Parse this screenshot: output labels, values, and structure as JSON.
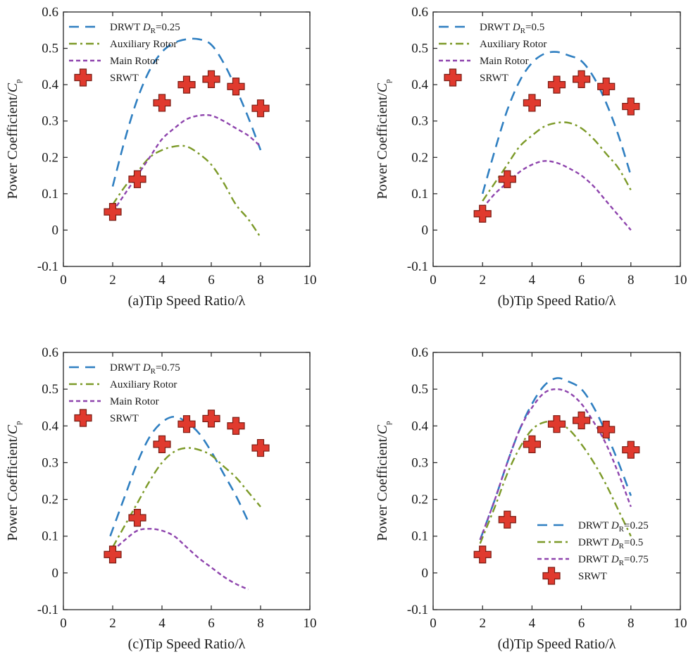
{
  "chart_data": [
    {
      "type": "line",
      "xlabel": "(a)Tip Speed Ratio/λ",
      "ylabel": {
        "prefix": "Power Coefficient/",
        "symbol": "C",
        "sub": "p"
      },
      "xlim": [
        0,
        10
      ],
      "ylim": [
        -0.1,
        0.6
      ],
      "xticks": [
        "0",
        "2",
        "4",
        "6",
        "8",
        "10"
      ],
      "yticks": [
        "-0.1",
        "0",
        "0.1",
        "0.2",
        "0.3",
        "0.4",
        "0.5",
        "0.6"
      ],
      "grid": false,
      "legend_position": "top-left",
      "series": [
        {
          "name": "DRWT D_R=0.25",
          "legend": {
            "main": "DRWT ",
            "ital": "D",
            "sub": "R",
            "tail": "=0.25"
          },
          "style": "dashed",
          "color": "#2f7fc1",
          "x": [
            2,
            2.5,
            3,
            3.5,
            4,
            4.5,
            5,
            5.5,
            6,
            6.5,
            7,
            7.5,
            8
          ],
          "y": [
            0.12,
            0.25,
            0.36,
            0.44,
            0.49,
            0.515,
            0.525,
            0.525,
            0.51,
            0.46,
            0.39,
            0.31,
            0.22
          ]
        },
        {
          "name": "Auxiliary Rotor",
          "legend": {
            "main": "Auxiliary Rotor"
          },
          "style": "dashdot",
          "color": "#7c9a28",
          "x": [
            2,
            2.5,
            3,
            3.5,
            4,
            4.5,
            5,
            5.5,
            6,
            6.5,
            7,
            7.5,
            8
          ],
          "y": [
            0.07,
            0.12,
            0.16,
            0.2,
            0.22,
            0.23,
            0.23,
            0.21,
            0.18,
            0.13,
            0.07,
            0.03,
            -0.02
          ]
        },
        {
          "name": "Main Rotor",
          "legend": {
            "main": "Main Rotor"
          },
          "style": "dotted",
          "color": "#8e44ad",
          "x": [
            2,
            2.5,
            3,
            3.5,
            4,
            4.5,
            5,
            5.5,
            6,
            6.5,
            7,
            7.5,
            8
          ],
          "y": [
            0.05,
            0.1,
            0.15,
            0.2,
            0.25,
            0.28,
            0.305,
            0.315,
            0.315,
            0.3,
            0.28,
            0.26,
            0.23
          ]
        },
        {
          "name": "SRWT",
          "legend": {
            "main": "SRWT"
          },
          "style": "marker",
          "color": "#e03a2e",
          "x": [
            2,
            3,
            4,
            5,
            6,
            7,
            8
          ],
          "y": [
            0.05,
            0.14,
            0.35,
            0.4,
            0.415,
            0.395,
            0.335
          ]
        }
      ]
    },
    {
      "type": "line",
      "xlabel": "(b)Tip Speed Ratio/λ",
      "ylabel": {
        "prefix": "Power Coefficient/",
        "symbol": "C",
        "sub": "p"
      },
      "xlim": [
        0,
        10
      ],
      "ylim": [
        -0.1,
        0.6
      ],
      "xticks": [
        "0",
        "2",
        "4",
        "6",
        "8",
        "10"
      ],
      "yticks": [
        "-0.1",
        "0",
        "0.1",
        "0.2",
        "0.3",
        "0.4",
        "0.5",
        "0.6"
      ],
      "grid": false,
      "legend_position": "top-left",
      "series": [
        {
          "name": "DRWT D_R=0.5",
          "legend": {
            "main": "DRWT ",
            "ital": "D",
            "sub": "R",
            "tail": "=0.5"
          },
          "style": "dashed",
          "color": "#2f7fc1",
          "x": [
            2,
            2.5,
            3,
            3.5,
            4,
            4.5,
            5,
            5.5,
            6,
            6.5,
            7,
            7.5,
            8
          ],
          "y": [
            0.1,
            0.22,
            0.33,
            0.41,
            0.46,
            0.485,
            0.49,
            0.48,
            0.465,
            0.42,
            0.35,
            0.26,
            0.15
          ]
        },
        {
          "name": "Auxiliary Rotor",
          "legend": {
            "main": "Auxiliary Rotor"
          },
          "style": "dashdot",
          "color": "#7c9a28",
          "x": [
            2,
            2.5,
            3,
            3.5,
            4,
            4.5,
            5,
            5.5,
            6,
            6.5,
            7,
            7.5,
            8
          ],
          "y": [
            0.08,
            0.13,
            0.18,
            0.23,
            0.26,
            0.285,
            0.295,
            0.295,
            0.28,
            0.25,
            0.21,
            0.17,
            0.11
          ]
        },
        {
          "name": "Main Rotor",
          "legend": {
            "main": "Main Rotor"
          },
          "style": "dotted",
          "color": "#8e44ad",
          "x": [
            2,
            2.5,
            3,
            3.5,
            4,
            4.5,
            5,
            5.5,
            6,
            6.5,
            7,
            7.5,
            8
          ],
          "y": [
            0.06,
            0.1,
            0.13,
            0.16,
            0.18,
            0.19,
            0.185,
            0.17,
            0.15,
            0.12,
            0.08,
            0.04,
            0.0
          ]
        },
        {
          "name": "SRWT",
          "legend": {
            "main": "SRWT"
          },
          "style": "marker",
          "color": "#e03a2e",
          "x": [
            2,
            3,
            4,
            5,
            6,
            7,
            8
          ],
          "y": [
            0.045,
            0.14,
            0.35,
            0.4,
            0.415,
            0.395,
            0.34
          ]
        }
      ]
    },
    {
      "type": "line",
      "xlabel": "(c)Tip Speed Ratio/λ",
      "ylabel": {
        "prefix": "Power Coefficient/",
        "symbol": "C",
        "sub": "p"
      },
      "xlim": [
        0,
        10
      ],
      "ylim": [
        -0.1,
        0.6
      ],
      "xticks": [
        "0",
        "2",
        "4",
        "6",
        "8",
        "10"
      ],
      "yticks": [
        "-0.1",
        "0",
        "0.1",
        "0.2",
        "0.3",
        "0.4",
        "0.5",
        "0.6"
      ],
      "grid": false,
      "legend_position": "top-left",
      "series": [
        {
          "name": "DRWT D_R=0.75",
          "legend": {
            "main": "DRWT ",
            "ital": "D",
            "sub": "R",
            "tail": "=0.75"
          },
          "style": "dashed",
          "color": "#2f7fc1",
          "x": [
            1.9,
            2.5,
            3,
            3.5,
            4,
            4.5,
            5,
            5.5,
            6,
            6.5,
            7,
            7.5
          ],
          "y": [
            0.1,
            0.21,
            0.3,
            0.37,
            0.41,
            0.425,
            0.41,
            0.38,
            0.33,
            0.27,
            0.21,
            0.14
          ]
        },
        {
          "name": "Auxiliary Rotor",
          "legend": {
            "main": "Auxiliary Rotor"
          },
          "style": "dashdot",
          "color": "#7c9a28",
          "x": [
            2,
            2.5,
            3,
            3.5,
            4,
            4.5,
            5,
            5.5,
            6,
            6.5,
            7,
            7.5,
            8
          ],
          "y": [
            0.07,
            0.13,
            0.19,
            0.25,
            0.3,
            0.33,
            0.34,
            0.335,
            0.32,
            0.29,
            0.26,
            0.22,
            0.18
          ]
        },
        {
          "name": "Main Rotor",
          "legend": {
            "main": "Main Rotor"
          },
          "style": "dotted",
          "color": "#8e44ad",
          "x": [
            2,
            2.5,
            3,
            3.5,
            4,
            4.5,
            5,
            5.5,
            6,
            6.5,
            7,
            7.5
          ],
          "y": [
            0.06,
            0.09,
            0.115,
            0.12,
            0.115,
            0.1,
            0.07,
            0.04,
            0.015,
            -0.01,
            -0.03,
            -0.045
          ]
        },
        {
          "name": "SRWT",
          "legend": {
            "main": "SRWT"
          },
          "style": "marker",
          "color": "#e03a2e",
          "x": [
            2,
            3,
            4,
            5,
            6,
            7,
            8
          ],
          "y": [
            0.05,
            0.15,
            0.35,
            0.405,
            0.42,
            0.4,
            0.34
          ]
        }
      ]
    },
    {
      "type": "line",
      "xlabel": "(d)Tip Speed Ratio/λ",
      "ylabel": {
        "prefix": "Power Coefficient/",
        "symbol": "C",
        "sub": "p"
      },
      "xlim": [
        0,
        10
      ],
      "ylim": [
        -0.1,
        0.6
      ],
      "xticks": [
        "0",
        "2",
        "4",
        "6",
        "8",
        "10"
      ],
      "yticks": [
        "-0.1",
        "0",
        "0.1",
        "0.2",
        "0.3",
        "0.4",
        "0.5",
        "0.6"
      ],
      "grid": false,
      "legend_position": "bottom-right",
      "series": [
        {
          "name": "DRWT D_R=0.25",
          "legend": {
            "main": "DRWT ",
            "ital": "D",
            "sub": "R",
            "tail": "=0.25"
          },
          "style": "dashed",
          "color": "#2f7fc1",
          "x": [
            1.9,
            2.5,
            3,
            3.5,
            4,
            4.5,
            5,
            5.5,
            6,
            6.5,
            7,
            7.5,
            8
          ],
          "y": [
            0.09,
            0.2,
            0.3,
            0.39,
            0.46,
            0.51,
            0.53,
            0.52,
            0.5,
            0.45,
            0.38,
            0.3,
            0.21
          ]
        },
        {
          "name": "DRWT D_R=0.5",
          "legend": {
            "main": "DRWT ",
            "ital": "D",
            "sub": "R",
            "tail": "=0.5"
          },
          "style": "dashdot",
          "color": "#7c9a28",
          "x": [
            1.9,
            2.5,
            3,
            3.5,
            4,
            4.5,
            5,
            5.5,
            6,
            6.5,
            7,
            7.5,
            8
          ],
          "y": [
            0.08,
            0.18,
            0.27,
            0.34,
            0.39,
            0.41,
            0.41,
            0.39,
            0.35,
            0.3,
            0.24,
            0.17,
            0.1
          ]
        },
        {
          "name": "DRWT D_R=0.75",
          "legend": {
            "main": "DRWT ",
            "ital": "D",
            "sub": "R",
            "tail": "=0.75"
          },
          "style": "dotted",
          "color": "#8e44ad",
          "x": [
            1.9,
            2.5,
            3,
            3.5,
            4,
            4.5,
            5,
            5.5,
            6,
            6.5,
            7,
            7.5,
            8
          ],
          "y": [
            0.09,
            0.2,
            0.3,
            0.39,
            0.45,
            0.49,
            0.5,
            0.49,
            0.46,
            0.41,
            0.35,
            0.27,
            0.18
          ]
        },
        {
          "name": "SRWT",
          "legend": {
            "main": "SRWT"
          },
          "style": "marker",
          "color": "#e03a2e",
          "x": [
            2,
            3,
            4,
            5,
            6,
            7,
            8
          ],
          "y": [
            0.05,
            0.145,
            0.35,
            0.405,
            0.415,
            0.39,
            0.335
          ]
        }
      ]
    }
  ]
}
